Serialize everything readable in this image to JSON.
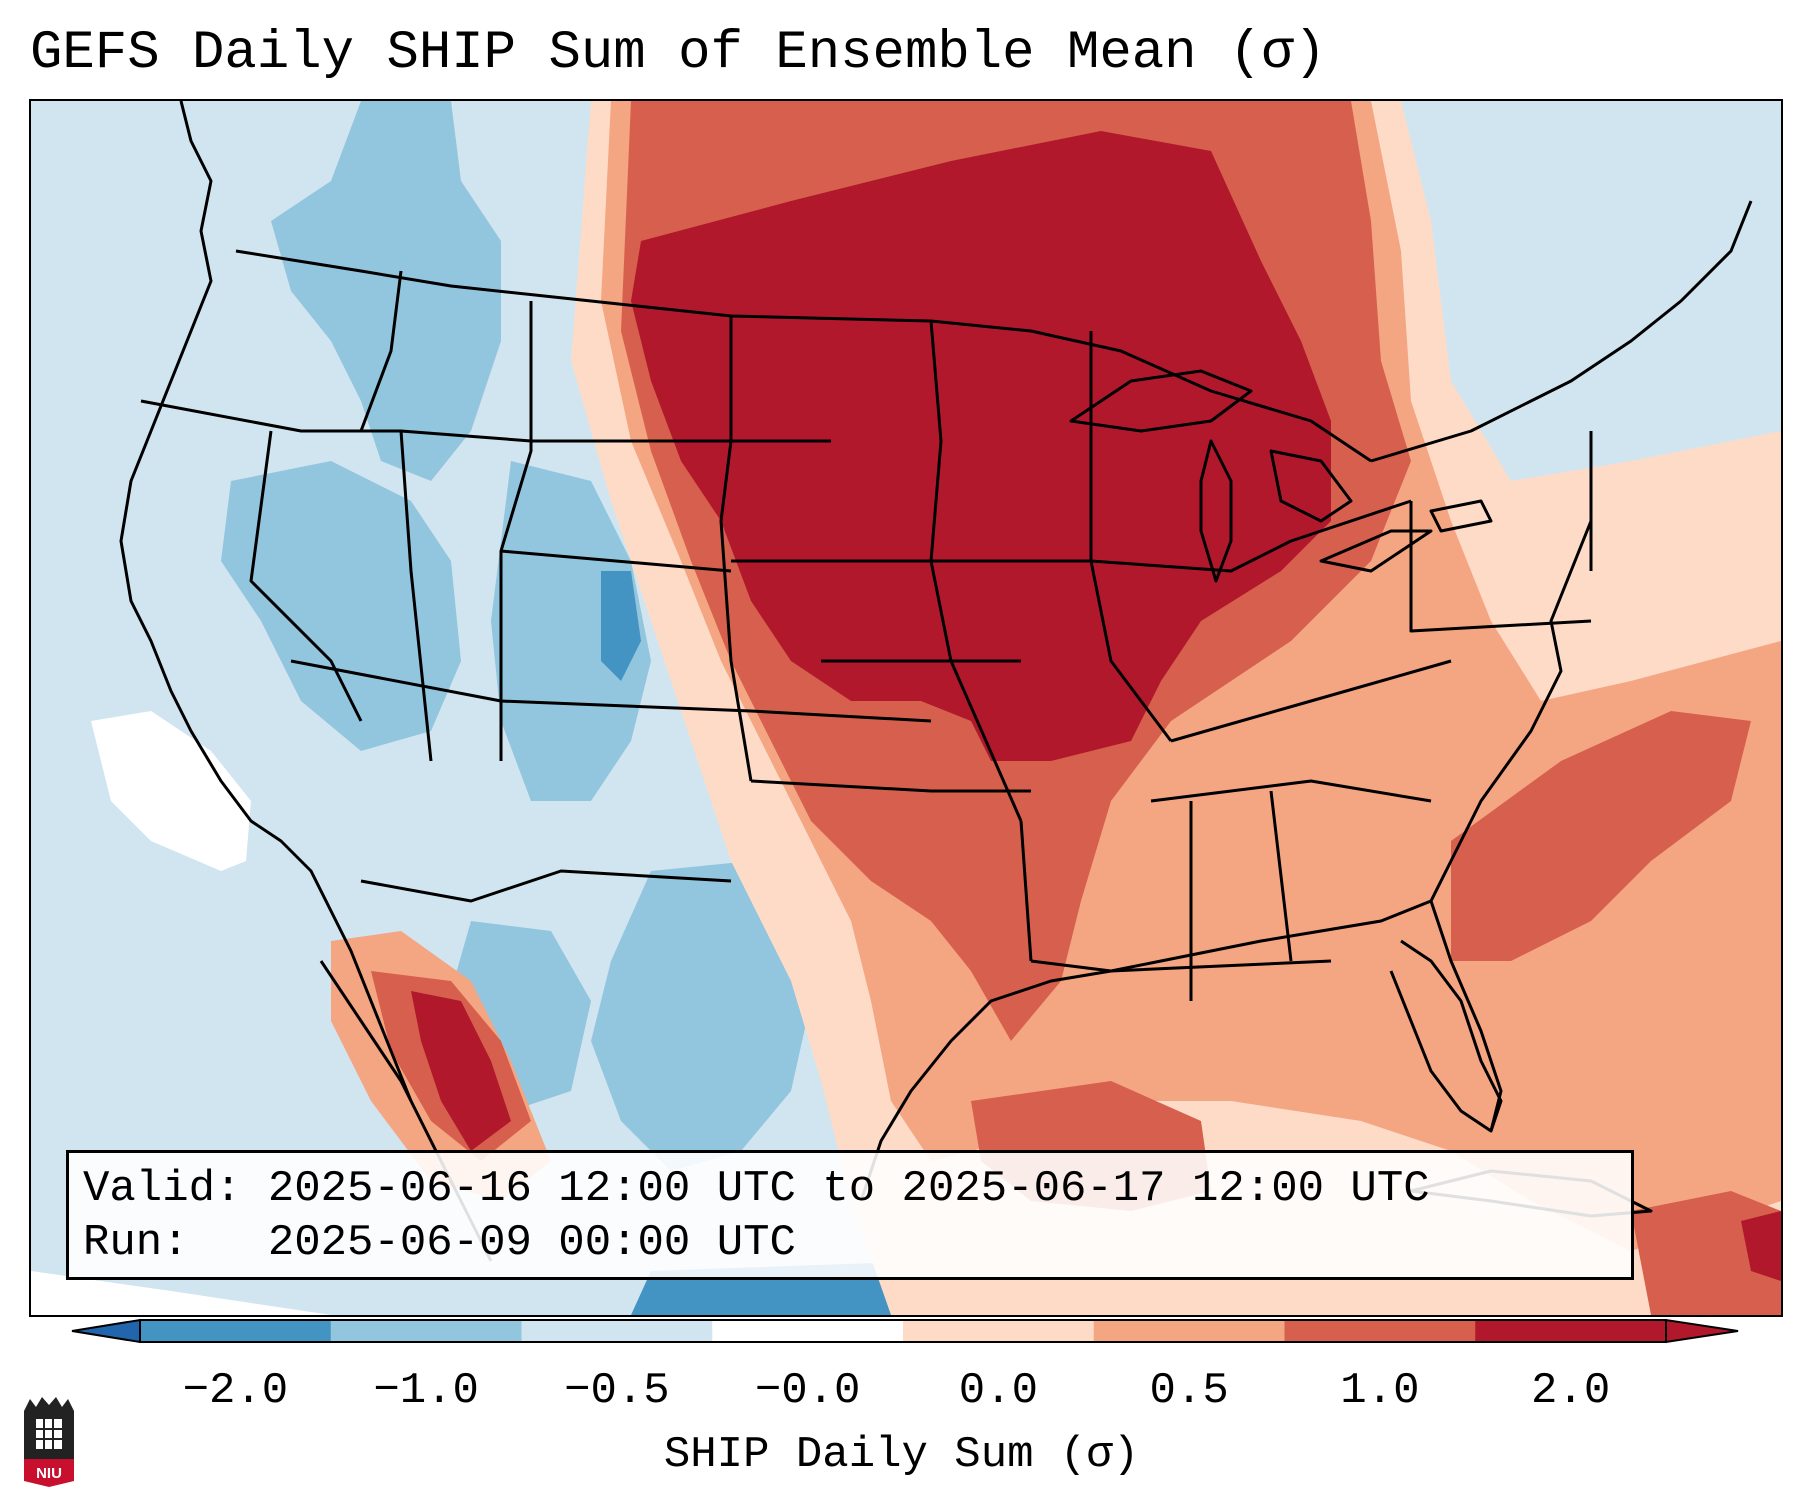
{
  "title": "GEFS Daily SHIP Sum of Ensemble Mean (σ)",
  "info": {
    "valid_label": "Valid:",
    "valid_value": "2025-06-16 12:00 UTC to 2025-06-17 12:00 UTC",
    "run_label": "Run:",
    "run_value": "2025-06-09 00:00 UTC"
  },
  "colorbar": {
    "label": "SHIP Daily Sum (σ)",
    "ticks": [
      "−2.0",
      "−1.0",
      "−0.5",
      "−0.0",
      "0.0",
      "0.5",
      "1.0",
      "2.0"
    ],
    "colors": [
      "#4393c3",
      "#92c5de",
      "#d1e5f0",
      "#ffffff",
      "#fddbc7",
      "#f4a582",
      "#d6604d",
      "#b2182b"
    ],
    "under_color": "#2166ac",
    "over_color": "#b2182b"
  },
  "map_colors": {
    "neg2": "#4393c3",
    "neg1": "#92c5de",
    "neg05": "#d1e5f0",
    "zero": "#ffffff",
    "pos0": "#fddbc7",
    "pos05": "#f4a582",
    "pos1": "#d6604d",
    "pos2": "#b2182b"
  },
  "logo": {
    "text": "NIU"
  }
}
